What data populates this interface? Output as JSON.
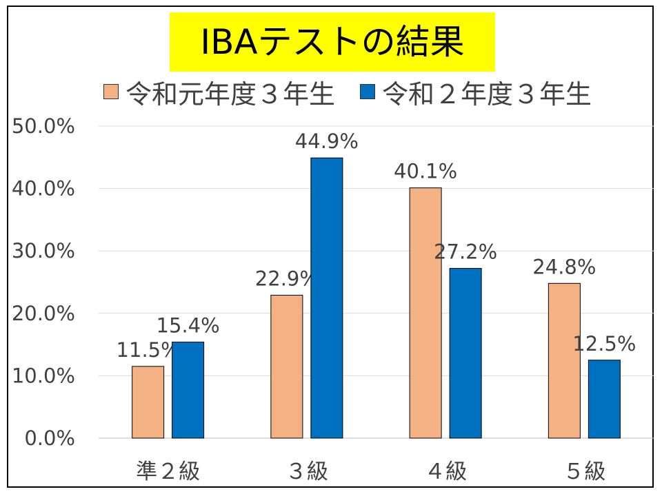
{
  "title": "IBAテストの結果",
  "legend": {
    "series0": "令和元年度３年生",
    "series1": "令和２年度３年生"
  },
  "chart_data": {
    "type": "bar",
    "title": "IBAテストの結果",
    "categories": [
      "準２級",
      "３級",
      "４級",
      "５級"
    ],
    "series": [
      {
        "name": "令和元年度３年生",
        "values": [
          11.5,
          22.9,
          40.1,
          24.8
        ],
        "color": "#f4b183"
      },
      {
        "name": "令和２年度３年生",
        "values": [
          15.4,
          44.9,
          27.2,
          12.5
        ],
        "color": "#0070c0"
      }
    ],
    "ylim": [
      0,
      50
    ],
    "yticks": [
      0,
      10,
      20,
      30,
      40,
      50
    ],
    "ytick_labels": [
      "0.0%",
      "10.0%",
      "20.0%",
      "30.0%",
      "40.0%",
      "50.0%"
    ],
    "data_labels": [
      [
        "11.5%",
        "22.9%",
        "40.1%",
        "24.8%"
      ],
      [
        "15.4%",
        "44.9%",
        "27.2%",
        "12.5%"
      ]
    ],
    "grid": true,
    "legend_position": "top"
  }
}
